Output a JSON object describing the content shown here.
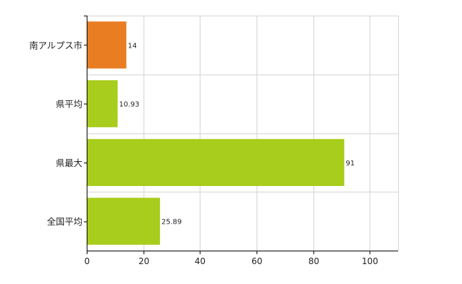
{
  "chart_data": {
    "type": "bar",
    "orientation": "horizontal",
    "categories": [
      "南アルプス市",
      "県平均",
      "県最大",
      "全国平均"
    ],
    "values": [
      14,
      10.93,
      91,
      25.89
    ],
    "data_labels": [
      "14",
      "10.93",
      "91",
      "25.89"
    ],
    "x_ticks": [
      0,
      20,
      40,
      60,
      80,
      100
    ],
    "xlim": [
      0,
      110
    ],
    "grid": true,
    "bar_colors": [
      "#e87d22",
      "#a8cd1c",
      "#a8cd1c",
      "#a8cd1c"
    ],
    "title": "",
    "xlabel": "",
    "ylabel": ""
  }
}
